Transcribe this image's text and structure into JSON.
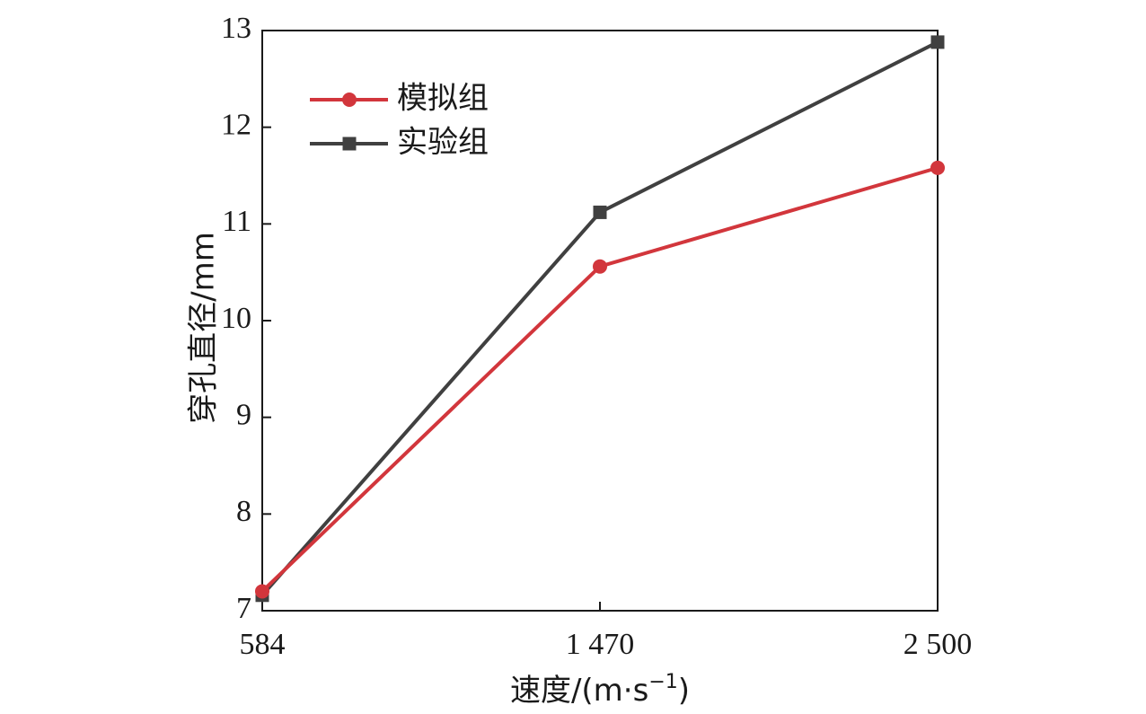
{
  "chart_data": {
    "type": "line",
    "categories": [
      "584",
      "1 470",
      "2 500"
    ],
    "x": [
      584,
      1470,
      2500
    ],
    "xlabel": "速度/(m·s",
    "xlabel_sup": "−1",
    "xlabel_close": ")",
    "ylabel": "穿孔直径/mm",
    "ylim": [
      7,
      13
    ],
    "yticks": [
      7,
      8,
      9,
      10,
      11,
      12,
      13
    ],
    "grid": false,
    "legend_position": "top-left",
    "series": [
      {
        "name": "模拟组",
        "marker": "circle",
        "color": "#d2363c",
        "values": [
          7.2,
          10.56,
          11.58
        ]
      },
      {
        "name": "实验组",
        "marker": "square",
        "color": "#404040",
        "values": [
          7.16,
          11.12,
          12.88
        ]
      }
    ]
  }
}
